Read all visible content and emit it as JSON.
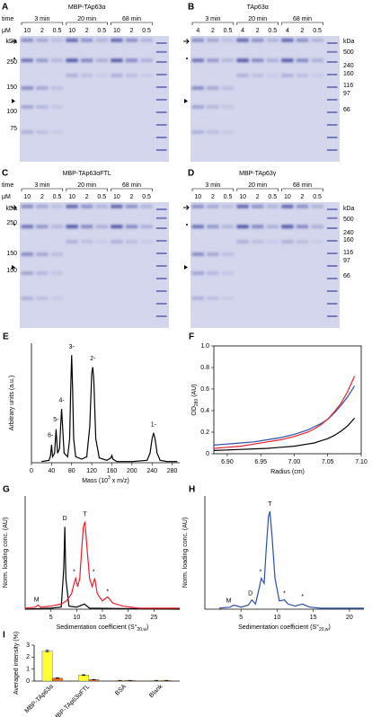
{
  "panels": [
    {
      "letter": "A",
      "title": "MBP-TAp63α",
      "title_color": "#000000",
      "time_label": "time",
      "conc_label": "μM",
      "times": [
        "3 min",
        "20 min",
        "68 min"
      ],
      "lanes": [
        "10",
        "2",
        "0.5",
        "10",
        "2",
        "0.5",
        "10",
        "2",
        "0.5"
      ],
      "markers": [
        "kDa",
        "250",
        "150",
        "100",
        "75"
      ]
    },
    {
      "letter": "B",
      "title": "TAp63α",
      "title_color": "#1a9a3a",
      "times": [
        "3 min",
        "20 min",
        "68 min"
      ],
      "lanes": [
        "4",
        "2",
        "0.5",
        "4",
        "2",
        "0.5",
        "4",
        "2",
        "0.5"
      ],
      "markers": [
        "kDa",
        "500",
        "240",
        "160",
        "116",
        "97",
        "66"
      ]
    },
    {
      "letter": "C",
      "title": "MBP-TAp63αFTL",
      "title_color": "#e8202a",
      "time_label": "time",
      "conc_label": "μM",
      "times": [
        "3 min",
        "20 min",
        "68 min"
      ],
      "lanes": [
        "10",
        "2",
        "0.5",
        "10",
        "2",
        "0.5",
        "10",
        "2",
        "0.5"
      ],
      "markers": [
        "kDa",
        "250",
        "150",
        "100"
      ]
    },
    {
      "letter": "D",
      "title": "MBP-TAp63γ",
      "title_color": "#2f4fc8",
      "times": [
        "3 min",
        "20 min",
        "68 min"
      ],
      "lanes": [
        "10",
        "2",
        "0.5",
        "10",
        "2",
        "0.5",
        "10",
        "2",
        "0.5"
      ],
      "markers": [
        "kDa",
        "500",
        "240",
        "160",
        "116",
        "97",
        "66"
      ]
    }
  ],
  "chart_data": [
    {
      "letter": "E",
      "type": "line",
      "x_label": [
        "Mass (10",
        "3",
        " x m/z)"
      ],
      "y_label": "Arbitrary units (a.u.)",
      "x": [
        20,
        35,
        38,
        40,
        42,
        46,
        49,
        52,
        56,
        58,
        60,
        62,
        65,
        72,
        76,
        78,
        80,
        82,
        84,
        88,
        100,
        110,
        116,
        120,
        122,
        124,
        128,
        135,
        150,
        158,
        160,
        162,
        170,
        200,
        230,
        236,
        240,
        243,
        246,
        250,
        256,
        270,
        290
      ],
      "series": [
        {
          "color": "#000000",
          "values": [
            0.01,
            0.02,
            0.06,
            0.15,
            0.05,
            0.08,
            0.28,
            0.08,
            0.12,
            0.3,
            0.45,
            0.3,
            0.08,
            0.05,
            0.2,
            0.6,
            0.9,
            0.6,
            0.2,
            0.05,
            0.03,
            0.05,
            0.3,
            0.75,
            0.8,
            0.7,
            0.2,
            0.04,
            0.02,
            0.04,
            0.06,
            0.03,
            0.01,
            0.01,
            0.02,
            0.08,
            0.2,
            0.25,
            0.2,
            0.08,
            0.02,
            0.01,
            0.01
          ]
        }
      ],
      "xlim": [
        0,
        295
      ],
      "xticks": [
        0,
        40,
        80,
        120,
        160,
        200,
        240,
        280
      ],
      "ylim": [
        0,
        1
      ],
      "annotations": [
        "1-",
        "2-",
        "3-",
        "4-",
        "5-",
        "6-"
      ]
    },
    {
      "letter": "F",
      "type": "line",
      "frame": true,
      "x_label": "Radius (cm)",
      "y_label": [
        "OD",
        "280",
        " (AU)"
      ],
      "x": [
        6.88,
        6.9,
        6.92,
        6.94,
        6.96,
        6.98,
        7.0,
        7.02,
        7.03,
        7.04,
        7.05,
        7.06,
        7.07,
        7.08,
        7.09
      ],
      "series": [
        {
          "color": "#000000",
          "values": [
            0.03,
            0.035,
            0.04,
            0.045,
            0.05,
            0.06,
            0.07,
            0.09,
            0.1,
            0.12,
            0.14,
            0.17,
            0.21,
            0.26,
            0.33
          ]
        },
        {
          "color": "#2b4fa8",
          "values": [
            0.08,
            0.09,
            0.1,
            0.11,
            0.13,
            0.15,
            0.18,
            0.22,
            0.25,
            0.28,
            0.32,
            0.38,
            0.45,
            0.53,
            0.63
          ]
        },
        {
          "color": "#e8202a",
          "values": [
            0.05,
            0.06,
            0.07,
            0.09,
            0.11,
            0.13,
            0.16,
            0.2,
            0.23,
            0.27,
            0.32,
            0.39,
            0.47,
            0.58,
            0.72
          ]
        }
      ],
      "xlim": [
        6.88,
        7.1
      ],
      "xticks": [
        {
          "value": 6.9,
          "label": "6.90"
        },
        {
          "value": 6.95,
          "label": "6.95"
        },
        {
          "value": 7.0,
          "label": "7.00"
        },
        {
          "value": 7.05,
          "label": "7.05"
        },
        {
          "value": 7.1,
          "label": "7.10"
        }
      ],
      "ylim": [
        0,
        1.0
      ],
      "yticks": [
        0,
        0.2,
        0.4,
        0.6,
        0.8,
        {
          "value": 1.0,
          "label": "1.0"
        }
      ]
    },
    {
      "letter": "G",
      "type": "line",
      "x_label": [
        "Sedimentation coefficient (S°",
        "20,w",
        ")"
      ],
      "y_label": "Norm. loading conc. (AU)",
      "series": [
        {
          "color": "#000000",
          "x": [
            0,
            5,
            7,
            7.5,
            7.7,
            7.9,
            8.5,
            10,
            11.5,
            12.5,
            30
          ],
          "values": [
            0,
            0.01,
            0.02,
            0.4,
            0.8,
            0.3,
            0.03,
            0.02,
            0.05,
            0.01,
            0
          ]
        },
        {
          "color": "#e8202a",
          "x": [
            0,
            2,
            2.5,
            3,
            5,
            7,
            8,
            9,
            9.5,
            9.8,
            10.2,
            10.6,
            11,
            11.3,
            11.6,
            12,
            12.5,
            13,
            13.5,
            14,
            15,
            16,
            17,
            19,
            22,
            30
          ],
          "values": [
            0.01,
            0.02,
            0.04,
            0.02,
            0.03,
            0.05,
            0.08,
            0.15,
            0.25,
            0.3,
            0.22,
            0.3,
            0.6,
            0.8,
            0.85,
            0.6,
            0.3,
            0.22,
            0.3,
            0.15,
            0.08,
            0.12,
            0.06,
            0.03,
            0.01,
            0.01
          ]
        }
      ],
      "xlim": [
        0,
        30
      ],
      "xticks": [
        5,
        10,
        15,
        20,
        25
      ],
      "ylim": [
        0,
        1.1
      ],
      "annotations": [
        "D",
        "T",
        "M",
        "*",
        "*",
        "*"
      ]
    },
    {
      "letter": "H",
      "type": "line",
      "x_label": [
        "Sedimentation coefficient (S°",
        "20,w",
        ")"
      ],
      "y_label": "Norm. loading conc. (AU)",
      "series": [
        {
          "color": "#2b4fa8",
          "x": [
            2,
            3.5,
            4,
            5,
            6,
            6.5,
            7,
            7.5,
            7.8,
            8.2,
            8.5,
            8.8,
            9,
            9.3,
            9.7,
            10.3,
            11,
            11.5,
            12.5,
            13.5,
            14.5,
            16,
            20,
            22
          ],
          "values": [
            0.01,
            0.02,
            0.04,
            0.02,
            0.04,
            0.09,
            0.05,
            0.2,
            0.3,
            0.25,
            0.6,
            0.9,
            0.95,
            0.7,
            0.3,
            0.08,
            0.09,
            0.05,
            0.03,
            0.05,
            0.02,
            0.01,
            0.01,
            0.01
          ]
        }
      ],
      "xlim": [
        0,
        22
      ],
      "xticks": [
        5,
        10,
        15,
        20
      ],
      "ylim": [
        0,
        1.1
      ],
      "annotations": [
        "T",
        "D",
        "M",
        "*",
        "*",
        "*"
      ]
    },
    {
      "letter": "I",
      "type": "bar",
      "y_label": "Averaged intensity (%)",
      "categories": [
        "MBP-TAp63α",
        "MBP-TAp63αFTL",
        "BSA",
        "Blank"
      ],
      "series": [
        {
          "color": "#ffff33",
          "values": [
            2.5,
            0.5,
            0.05,
            0.05
          ],
          "errors": [
            0.07,
            0.03,
            0.01,
            0.01
          ]
        },
        {
          "color": "#f26a1b",
          "values": [
            0.25,
            0.12,
            0.05,
            0.05
          ],
          "errors": [
            0.02,
            0.02,
            0.01,
            0.01
          ]
        }
      ],
      "ylim": [
        0,
        3
      ],
      "yticks": [
        0,
        1,
        2,
        3
      ]
    }
  ]
}
